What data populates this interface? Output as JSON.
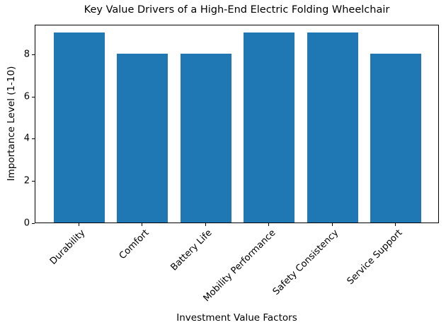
{
  "chart_data": {
    "type": "bar",
    "title": "Key Value Drivers of a High-End Electric Folding Wheelchair",
    "xlabel": "Investment Value Factors",
    "ylabel": "Importance Level (1-10)",
    "categories": [
      "Durability",
      "Comfort",
      "Battery Life",
      "Mobility Performance",
      "Safety Consistency",
      "Service Support"
    ],
    "values": [
      9,
      8,
      8,
      9,
      9,
      8
    ],
    "yticks": [
      0,
      2,
      4,
      6,
      8
    ],
    "ylim": [
      0,
      9.4
    ],
    "bar_color": "#1f77b4",
    "background_color": "#ffffff",
    "axis_color": "#000000",
    "text_color": "#000000",
    "grid": false,
    "legend": "none",
    "x_tick_rotation_deg": 45
  }
}
